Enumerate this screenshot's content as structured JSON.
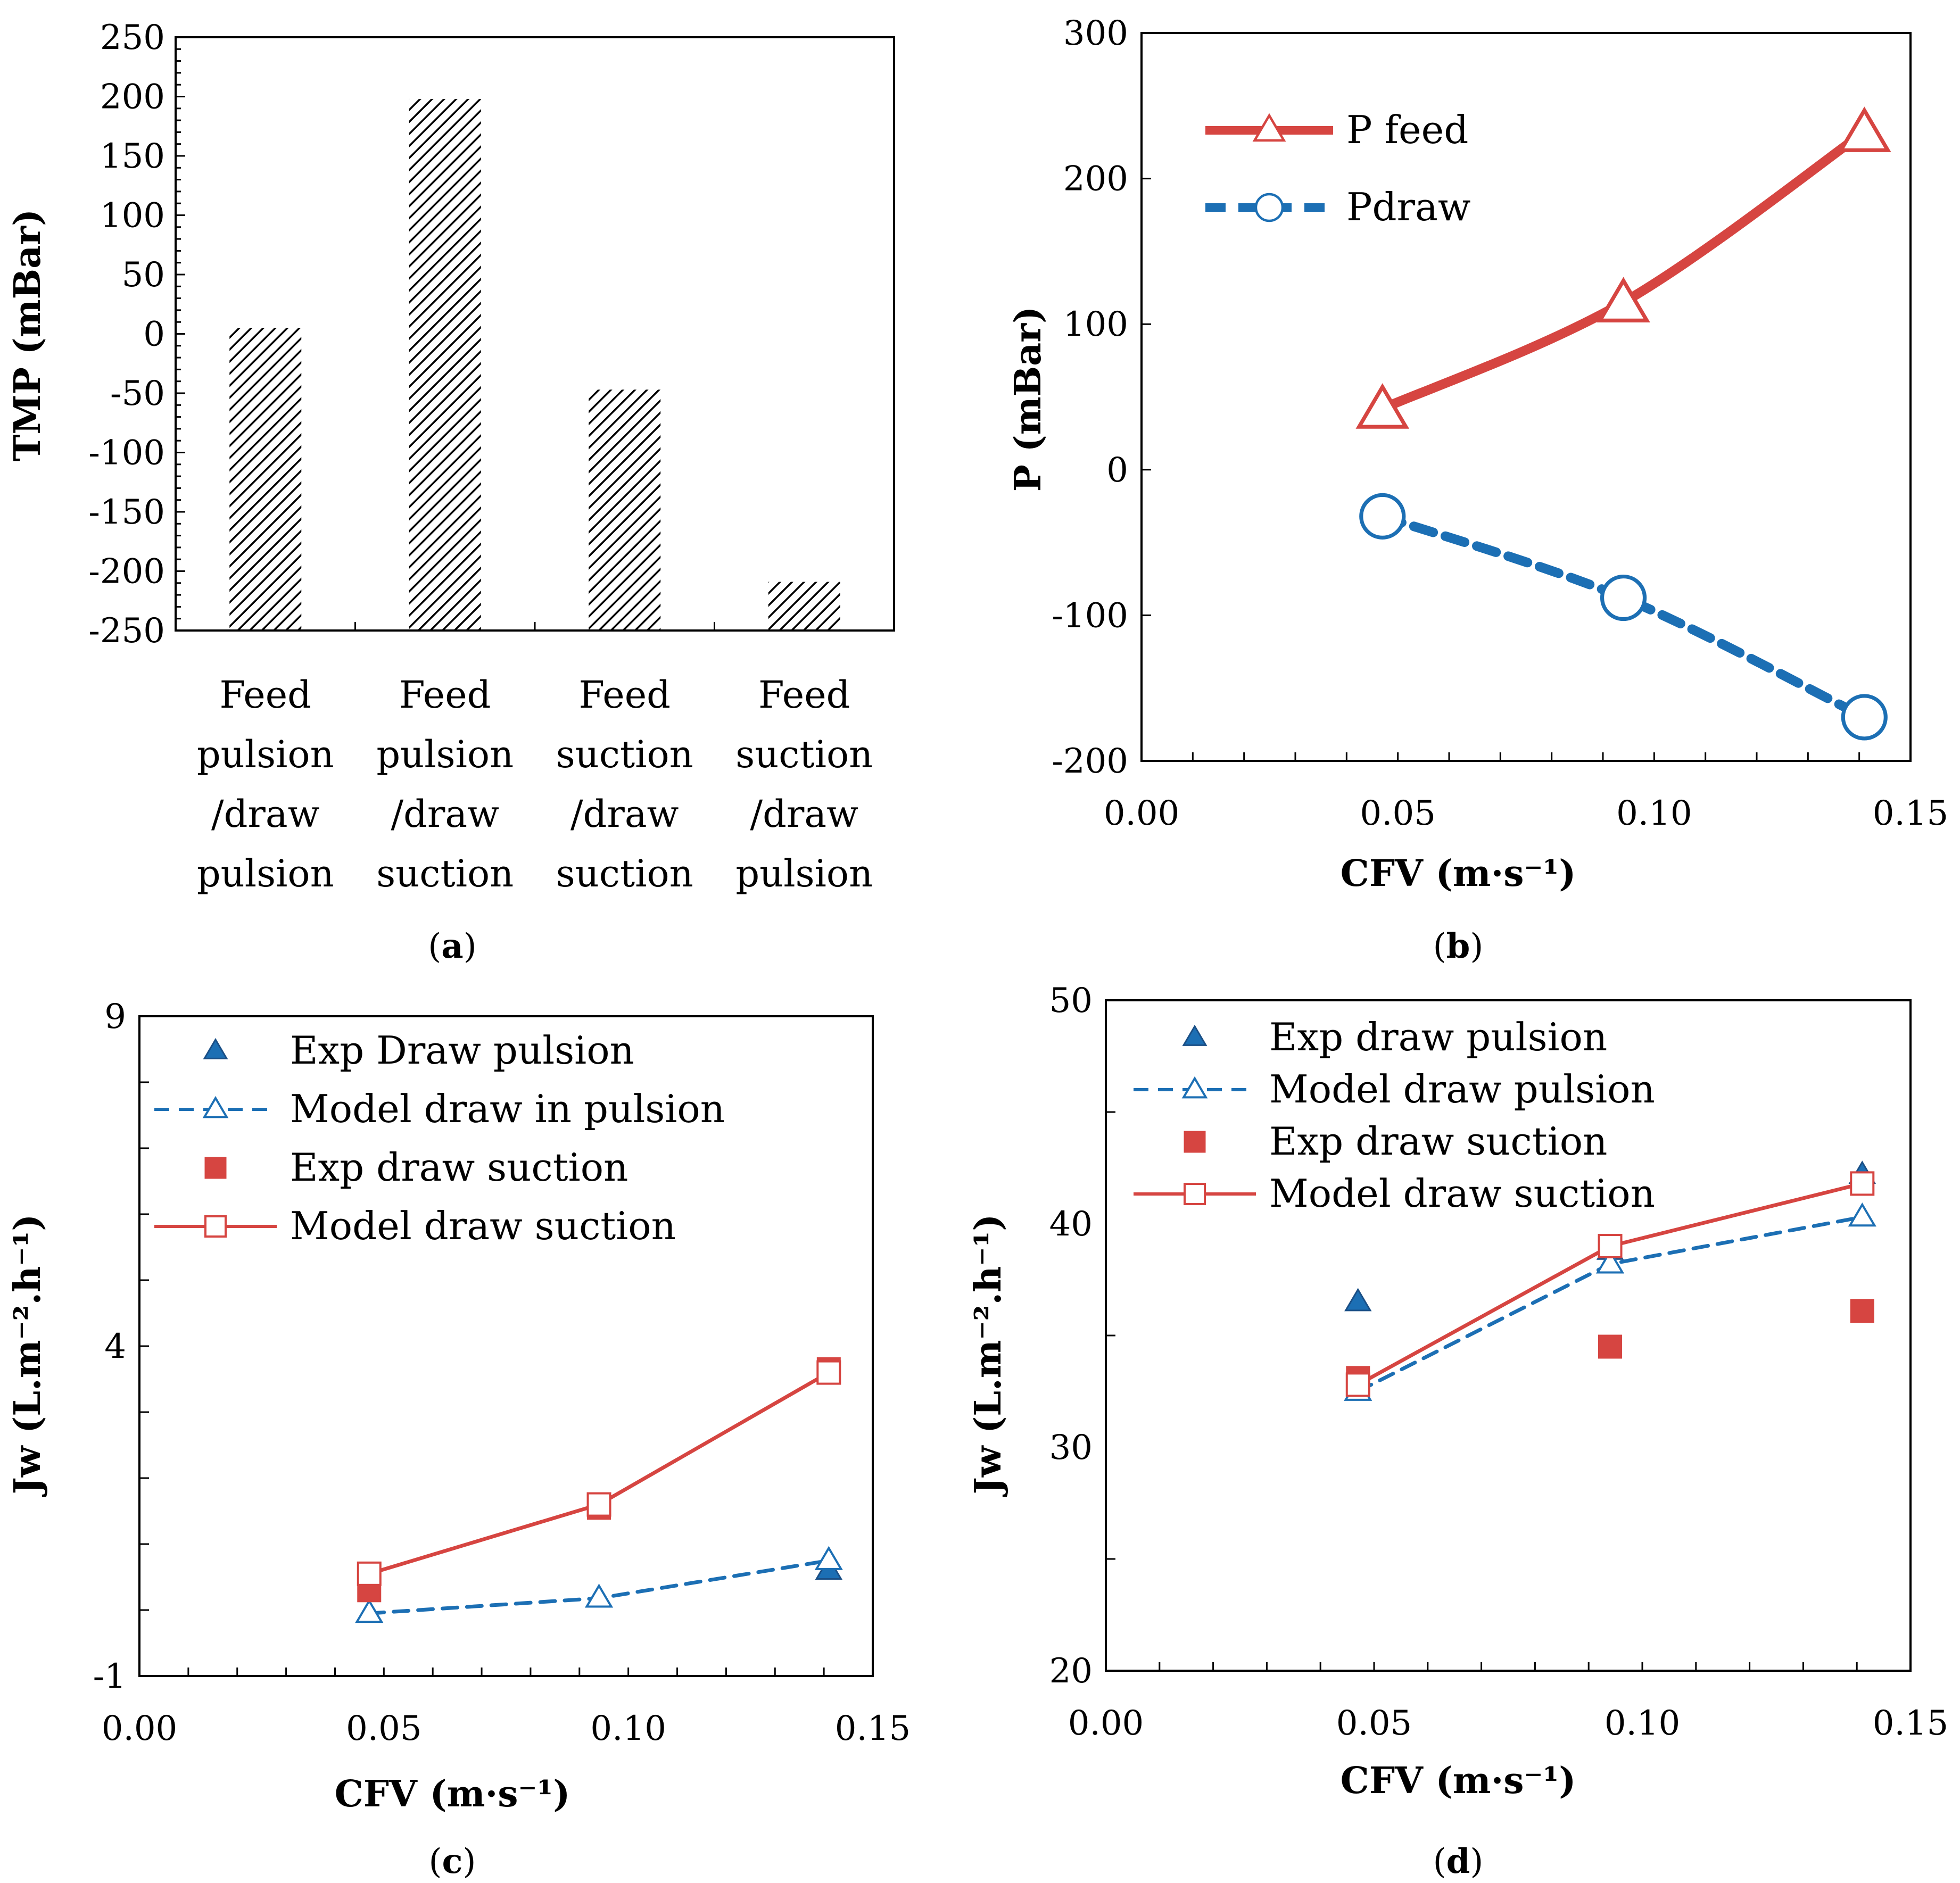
{
  "colors": {
    "red": "#d64541",
    "blue": "#1c6fb4",
    "darkblue": "#1a4f86",
    "axis": "#000000"
  },
  "chart_data": [
    {
      "id": "a",
      "type": "bar",
      "caption_open": "(",
      "caption_letter": "a",
      "caption_close": ")",
      "ylabel": "TMP (mBar)",
      "ylim": [
        -250,
        250
      ],
      "yticks": [
        250,
        200,
        150,
        100,
        50,
        0,
        -50,
        -100,
        -150,
        -200,
        -250
      ],
      "ytick_labels": [
        "250",
        "200",
        "150",
        "100",
        "50",
        "0",
        "-50",
        "-100",
        "-150",
        "-200",
        "-250"
      ],
      "categories": [
        [
          "Feed",
          "pulsion",
          "/draw",
          "pulsion"
        ],
        [
          "Feed",
          "pulsion",
          "/draw",
          "suction"
        ],
        [
          "Feed",
          "suction",
          "/draw",
          "suction"
        ],
        [
          "Feed",
          "suction",
          "/draw",
          "pulsion"
        ]
      ],
      "values": [
        5,
        198,
        -47,
        -209
      ],
      "pattern": "diagonal hatch"
    },
    {
      "id": "b",
      "type": "line",
      "caption_open": "(",
      "caption_letter": "b",
      "caption_close": ")",
      "xlabel": "CFV (m·s⁻¹)",
      "ylabel": "P (mBar)",
      "xlim": [
        0,
        0.15
      ],
      "ylim": [
        -200,
        300
      ],
      "xticks": [
        0,
        0.05,
        0.1,
        0.15
      ],
      "xtick_labels": [
        "0.00",
        "0.05",
        "0.10",
        "0.15"
      ],
      "yticks": [
        300,
        200,
        100,
        0,
        -100,
        -200
      ],
      "ytick_labels": [
        "300",
        "200",
        "100",
        "0",
        "-100",
        "-200"
      ],
      "series": [
        {
          "name": "P feed",
          "x": [
            0.047,
            0.094,
            0.141
          ],
          "values": [
            42,
            115,
            232
          ],
          "color": "#d64541",
          "marker": "triangle-open",
          "style": "solid",
          "markers_offset": true
        },
        {
          "name": "Pdraw",
          "x": [
            0.047,
            0.094,
            0.141
          ],
          "values": [
            -32,
            -88,
            -170
          ],
          "color": "#1c6fb4",
          "marker": "circle-open",
          "style": "dashed"
        }
      ]
    },
    {
      "id": "c",
      "type": "line",
      "caption_open": "(",
      "caption_letter": "c",
      "caption_close": ")",
      "xlabel": "CFV (m·s⁻¹)",
      "ylabel": "Jw (L.m⁻².h⁻¹)",
      "xlim": [
        0,
        0.15
      ],
      "ylim": [
        -1,
        9
      ],
      "xticks": [
        0,
        0.05,
        0.1,
        0.15
      ],
      "xtick_labels": [
        "0.00",
        "0.05",
        "0.10",
        "0.15"
      ],
      "yticks": [
        9,
        4,
        -1
      ],
      "ytick_labels": [
        "9",
        "4",
        "-1"
      ],
      "series": [
        {
          "name": "Exp Draw pulsion",
          "x": [
            0.047,
            0.094,
            0.141
          ],
          "values": [
            -0.05,
            0.18,
            0.6
          ],
          "color": "#1c6fb4",
          "marker": "triangle-filled",
          "style": "none"
        },
        {
          "name": "Model draw in pulsion",
          "x": [
            0.047,
            0.094,
            0.141
          ],
          "values": [
            -0.05,
            0.18,
            0.75
          ],
          "color": "#1c6fb4",
          "marker": "triangle-open",
          "style": "dashed"
        },
        {
          "name": "Exp draw suction",
          "x": [
            0.047,
            0.094,
            0.141
          ],
          "values": [
            0.3,
            1.55,
            3.65
          ],
          "color": "#d64541",
          "marker": "square-filled",
          "style": "none"
        },
        {
          "name": "Model draw suction",
          "x": [
            0.047,
            0.094,
            0.141
          ],
          "values": [
            0.55,
            1.6,
            3.6
          ],
          "color": "#d64541",
          "marker": "square-open",
          "style": "solid"
        }
      ]
    },
    {
      "id": "d",
      "type": "line",
      "caption_open": "(",
      "caption_letter": "d",
      "caption_close": ")",
      "xlabel": "CFV (m·s⁻¹)",
      "ylabel": "Jw (L.m⁻².h⁻¹)",
      "xlim": [
        0,
        0.15
      ],
      "ylim": [
        20,
        50
      ],
      "xticks": [
        0,
        0.05,
        0.1,
        0.15
      ],
      "xtick_labels": [
        "0.00",
        "0.05",
        "0.10",
        "0.15"
      ],
      "yticks": [
        50,
        40,
        30,
        20
      ],
      "ytick_labels": [
        "50",
        "40",
        "30",
        "20"
      ],
      "yminor": [
        45,
        35,
        25
      ],
      "series": [
        {
          "name": "Exp draw pulsion",
          "x": [
            0.047,
            0.094,
            0.141
          ],
          "values": [
            36.5,
            38.8,
            42.2
          ],
          "color": "#1c6fb4",
          "marker": "triangle-filled",
          "style": "none"
        },
        {
          "name": "Model draw pulsion",
          "x": [
            0.047,
            0.094,
            0.141
          ],
          "values": [
            32.5,
            38.2,
            40.3
          ],
          "color": "#1c6fb4",
          "marker": "triangle-open",
          "style": "dashed"
        },
        {
          "name": "Exp draw suction",
          "x": [
            0.047,
            0.094,
            0.141
          ],
          "values": [
            33.1,
            34.5,
            36.1
          ],
          "color": "#d64541",
          "marker": "square-filled",
          "style": "none"
        },
        {
          "name": "Model draw suction",
          "x": [
            0.047,
            0.094,
            0.141
          ],
          "values": [
            32.8,
            39.0,
            41.8
          ],
          "color": "#d64541",
          "marker": "square-open",
          "style": "solid"
        }
      ]
    }
  ]
}
